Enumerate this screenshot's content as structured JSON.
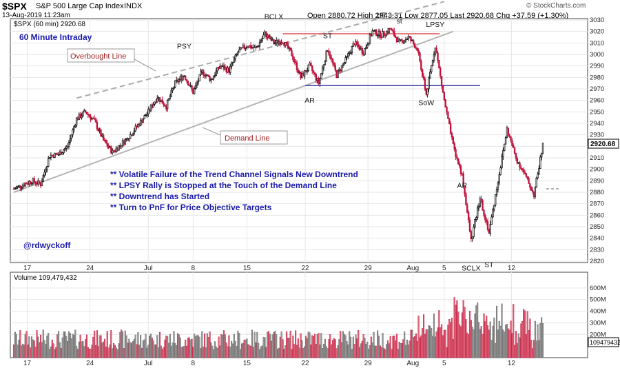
{
  "header": {
    "symbol": "$SPX",
    "name": "S&P 500 Large Cap Index",
    "exchange": "INDX",
    "date": "13-Aug-2019 11:23am",
    "ohlc": "Open 2880.72  High 2943.31  Low 2877.05  Last 2920.68  Chg +37.59 (+1.30%)",
    "credit": "© StockCharts.com"
  },
  "legend": "$SPX (60 min) 2920.68",
  "volume_legend": "Volume 109,479,432",
  "current_price_label": "2920.68",
  "current_volume_label": "109479432",
  "title_annotation": "60 Minute Intraday",
  "handle": "@rdwyckoff",
  "notes": [
    "** Volatile Failure of the Trend Channel Signals New Downtrend",
    "** LPSY Rally is Stopped at the Touch of the Demand Line",
    "** Downtrend has Started",
    "** Turn to PnF for Price Objective Targets"
  ],
  "callouts": {
    "overbought": "Overbought Line",
    "demand": "Demand Line"
  },
  "wyckoff_labels": [
    {
      "text": "PSY",
      "date": 19
    },
    {
      "text": "BCLX",
      "date": 29
    },
    {
      "text": "ST",
      "date": 35
    },
    {
      "text": "AR",
      "date": 33
    },
    {
      "text": "UT",
      "date": 41
    },
    {
      "text": "st",
      "date": 43
    },
    {
      "text": "LPSY",
      "date": 47
    },
    {
      "text": "SoW",
      "date": 46
    },
    {
      "text": "AR",
      "date": 50
    },
    {
      "text": "SCLX",
      "date": 51
    },
    {
      "text": "ST",
      "date": 53
    }
  ],
  "chart_data": {
    "type": "candlestick",
    "y_axis": {
      "min": 2820,
      "max": 3030,
      "ticks": [
        3030,
        3020,
        3010,
        3000,
        2990,
        2980,
        2970,
        2960,
        2950,
        2940,
        2930,
        2920,
        2910,
        2900,
        2890,
        2880,
        2870,
        2860,
        2850,
        2840,
        2830,
        2820
      ]
    },
    "x_ticks": [
      "17",
      "24",
      "Jul",
      "8",
      "15",
      "22",
      "29",
      "Aug",
      "5",
      "12"
    ],
    "price_anchors": [
      [
        0,
        2883
      ],
      [
        2,
        2890
      ],
      [
        3,
        2887
      ],
      [
        4,
        2912
      ],
      [
        5,
        2913
      ],
      [
        6,
        2920
      ],
      [
        7,
        2944
      ],
      [
        8,
        2950
      ],
      [
        9,
        2942
      ],
      [
        10,
        2925
      ],
      [
        11,
        2915
      ],
      [
        12,
        2922
      ],
      [
        13,
        2930
      ],
      [
        15,
        2950
      ],
      [
        16,
        2963
      ],
      [
        17,
        2955
      ],
      [
        18,
        2975
      ],
      [
        19,
        2982
      ],
      [
        20,
        2967
      ],
      [
        21,
        2985
      ],
      [
        22,
        2978
      ],
      [
        23,
        2990
      ],
      [
        24,
        2986
      ],
      [
        25,
        3002
      ],
      [
        26,
        3008
      ],
      [
        27,
        3005
      ],
      [
        28,
        3018
      ],
      [
        29,
        3010
      ],
      [
        30,
        3012
      ],
      [
        31,
        3000
      ],
      [
        32,
        2980
      ],
      [
        33,
        2990
      ],
      [
        34,
        2975
      ],
      [
        35,
        3005
      ],
      [
        36,
        2982
      ],
      [
        37,
        2995
      ],
      [
        38,
        3010
      ],
      [
        39,
        3002
      ],
      [
        40,
        3020
      ],
      [
        41,
        3017
      ],
      [
        42,
        3022
      ],
      [
        43,
        3010
      ],
      [
        44,
        3015
      ],
      [
        45,
        3005
      ],
      [
        46,
        2965
      ],
      [
        47,
        3008
      ],
      [
        48,
        2960
      ],
      [
        49,
        2920
      ],
      [
        50,
        2895
      ],
      [
        51,
        2838
      ],
      [
        52,
        2875
      ],
      [
        53,
        2845
      ],
      [
        54,
        2890
      ],
      [
        55,
        2935
      ],
      [
        56,
        2910
      ],
      [
        57,
        2895
      ],
      [
        58,
        2878
      ],
      [
        59,
        2921
      ]
    ],
    "volume_axis": {
      "min": 0,
      "max": 700,
      "ticks": [
        "600M",
        "500M",
        "400M",
        "300M",
        "200M"
      ]
    },
    "volume_ticks_values": [
      600,
      500,
      400,
      300,
      200
    ],
    "reference_lines": {
      "overbought": "Overbought Line",
      "demand": "Demand Line"
    }
  }
}
